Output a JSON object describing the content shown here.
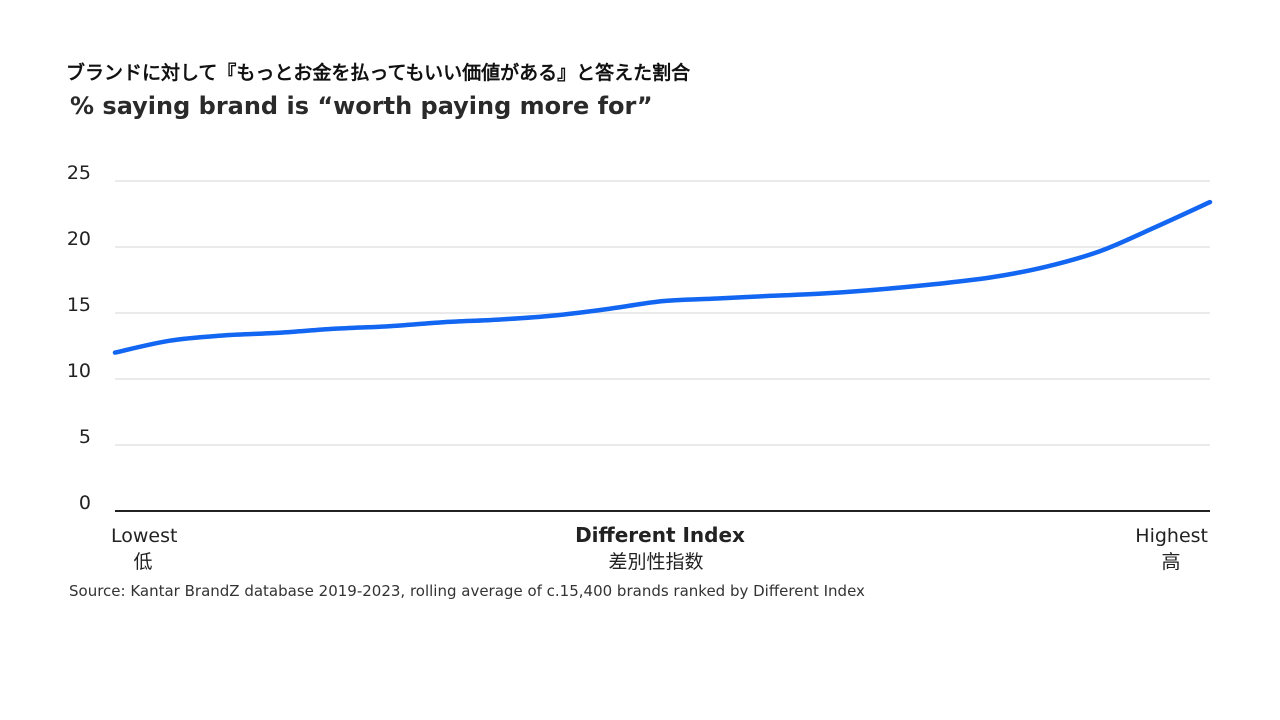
{
  "header": {
    "title_jp": "ブランドに対して『もっとお金を払ってもいい価値がある』と答えた割合",
    "title_en": "% saying brand is “worth paying more for”"
  },
  "chart_data": {
    "type": "line",
    "xlabel": "Different Index",
    "xlabel_jp": "差別性指数",
    "x_min_label": "Lowest",
    "x_min_label_jp": "低",
    "x_max_label": "Highest",
    "x_max_label_jp": "高",
    "ylim": [
      0,
      25
    ],
    "yticks": [
      "0",
      "5",
      "10",
      "15",
      "20",
      "25"
    ],
    "grid": true,
    "series": [
      {
        "color": "#1266f1",
        "x": [
          0,
          5,
          10,
          15,
          20,
          25,
          30,
          35,
          40,
          45,
          50,
          55,
          60,
          65,
          70,
          75,
          80,
          85,
          90,
          95,
          100
        ],
        "values": [
          12.0,
          12.9,
          13.3,
          13.5,
          13.8,
          14.0,
          14.3,
          14.5,
          14.8,
          15.3,
          15.9,
          16.1,
          16.3,
          16.5,
          16.8,
          17.2,
          17.7,
          18.5,
          19.7,
          21.5,
          23.4
        ]
      }
    ]
  },
  "footer": {
    "source": "Source: Kantar BrandZ database 2019-2023, rolling average of c.15,400 brands ranked by Different Index"
  }
}
